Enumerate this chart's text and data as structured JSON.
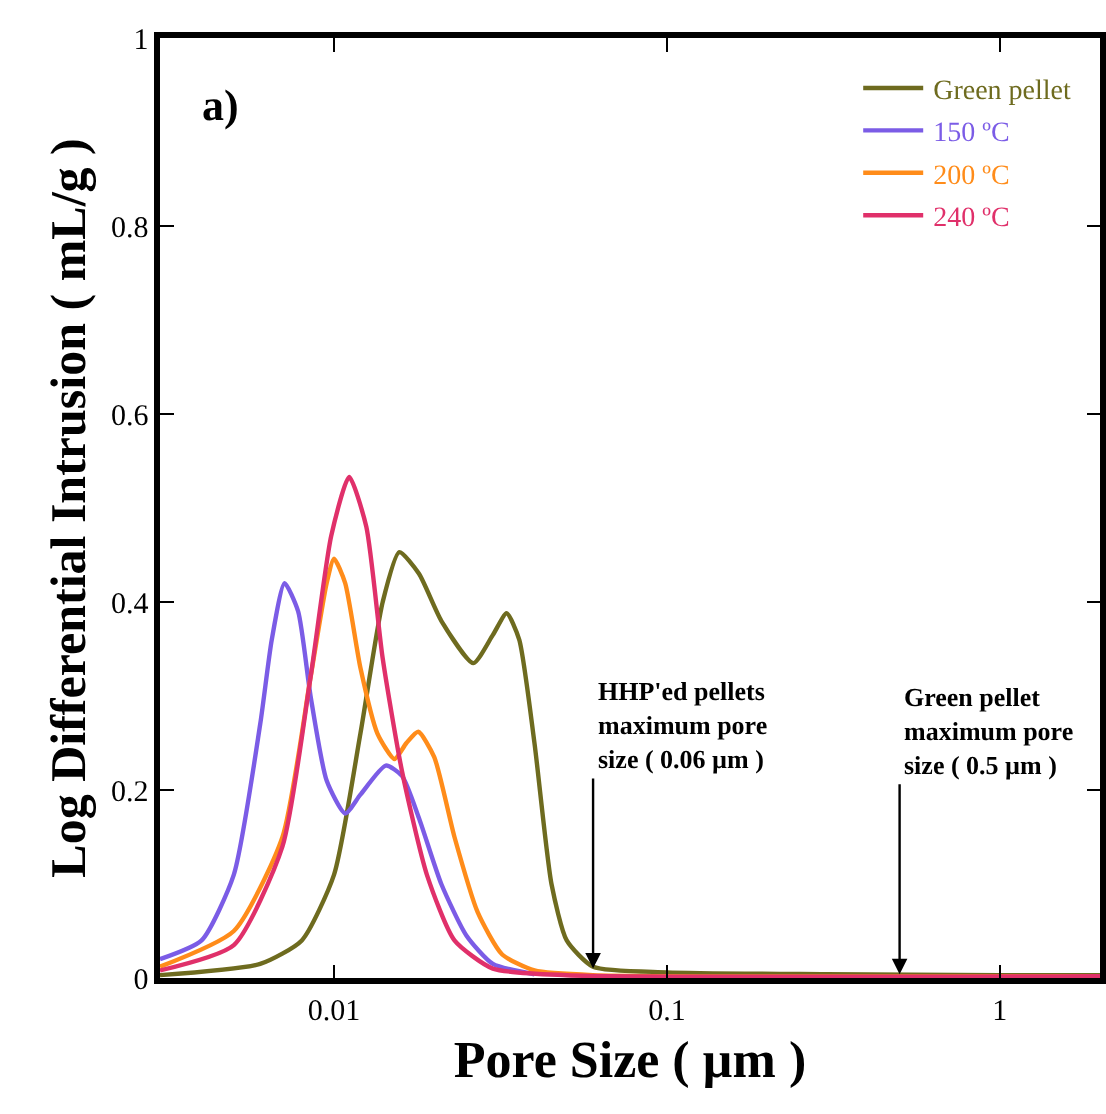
{
  "chart_data": {
    "type": "line",
    "xlabel": "Pore Size ( µm )",
    "ylabel": "Log Differential Intrusion ( mL/g )",
    "log": "x",
    "xlim": [
      0.003,
      2
    ],
    "xticks": [
      0.01,
      0.1,
      1
    ],
    "ylim": [
      0,
      1
    ],
    "yticks": [
      0,
      0.2,
      0.4,
      0.6,
      0.8,
      1
    ],
    "grid": false,
    "legend": "top right",
    "annotations": [
      {
        "text": "a)"
      },
      {
        "text": "HHP'ed pellets\nmaximum pore\nsize ( 0.06 µm )",
        "x": 0.06,
        "y": 0.01
      },
      {
        "text": "Green pellet\nmaximum pore\nsize ( 0.5 µm )",
        "x": 0.5,
        "y": 0.004
      }
    ],
    "series": [
      {
        "name": "Green pellet",
        "color": "#6e6b1f",
        "x": [
          0.003,
          0.006,
          0.008,
          0.01,
          0.012,
          0.014,
          0.0157,
          0.018,
          0.021,
          0.0262,
          0.03,
          0.033,
          0.036,
          0.04,
          0.045,
          0.05,
          0.06,
          0.1,
          0.3,
          1,
          2
        ],
        "values": [
          0.003,
          0.015,
          0.04,
          0.11,
          0.26,
          0.4,
          0.453,
          0.43,
          0.38,
          0.335,
          0.365,
          0.388,
          0.36,
          0.25,
          0.1,
          0.04,
          0.012,
          0.006,
          0.004,
          0.003,
          0.003
        ]
      },
      {
        "name": "150 ºC",
        "color": "#7b5ce6",
        "x": [
          0.003,
          0.004,
          0.005,
          0.006,
          0.0065,
          0.0071,
          0.0078,
          0.0085,
          0.0095,
          0.0108,
          0.012,
          0.0143,
          0.016,
          0.018,
          0.021,
          0.025,
          0.03,
          0.04
        ],
        "values": [
          0.02,
          0.04,
          0.11,
          0.27,
          0.36,
          0.42,
          0.39,
          0.3,
          0.21,
          0.175,
          0.195,
          0.226,
          0.215,
          0.17,
          0.1,
          0.045,
          0.015,
          0.004
        ]
      },
      {
        "name": "200 ºC",
        "color": "#ff8c1a",
        "x": [
          0.003,
          0.005,
          0.007,
          0.0085,
          0.0095,
          0.01,
          0.0108,
          0.012,
          0.0135,
          0.0152,
          0.0165,
          0.0179,
          0.02,
          0.023,
          0.027,
          0.032,
          0.04,
          0.06,
          2
        ],
        "values": [
          0.012,
          0.05,
          0.15,
          0.32,
          0.42,
          0.446,
          0.42,
          0.33,
          0.26,
          0.233,
          0.25,
          0.262,
          0.235,
          0.15,
          0.07,
          0.025,
          0.008,
          0.003,
          0.002
        ]
      },
      {
        "name": "240 ºC",
        "color": "#e0306a",
        "x": [
          0.003,
          0.005,
          0.007,
          0.0085,
          0.0098,
          0.0111,
          0.0125,
          0.014,
          0.016,
          0.019,
          0.023,
          0.03,
          0.05,
          2
        ],
        "values": [
          0.008,
          0.035,
          0.14,
          0.32,
          0.47,
          0.533,
          0.48,
          0.34,
          0.22,
          0.11,
          0.04,
          0.01,
          0.003,
          0.002
        ]
      }
    ]
  }
}
